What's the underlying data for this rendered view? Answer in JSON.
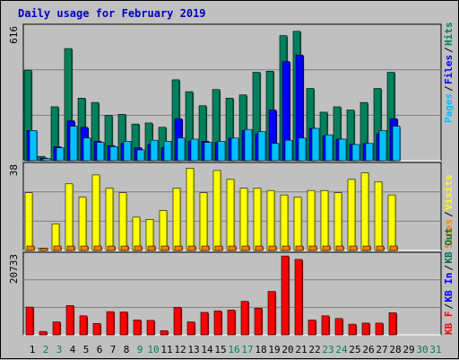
{
  "title": "Daily usage for February 2019",
  "colors": {
    "hits": "#00805c",
    "files": "#0000ff",
    "pages": "#00c0ff",
    "visits": "#ffff00",
    "sites": "#ff8000",
    "kbin": "#0000ff",
    "kbout": "#006f4e",
    "kbf": "#ff0000",
    "weekday": "#000000",
    "weekend": "#00805c"
  },
  "chart_data": [
    {
      "type": "bar",
      "panel": "hits-files-pages",
      "y_max_label": "616",
      "ylim": [
        0,
        616
      ],
      "legend": [
        {
          "name": "Pages",
          "color": "#00c0ff"
        },
        {
          "name": "Files",
          "color": "#0000ff"
        },
        {
          "name": "Hits",
          "color": "#00805c"
        }
      ],
      "categories": [
        "1",
        "2",
        "3",
        "4",
        "5",
        "6",
        "7",
        "8",
        "9",
        "10",
        "11",
        "12",
        "13",
        "14",
        "15",
        "16",
        "17",
        "18",
        "19",
        "20",
        "21",
        "22",
        "23",
        "24",
        "25",
        "26",
        "27",
        "28"
      ],
      "series": [
        {
          "name": "Hits",
          "values": [
            420,
            20,
            250,
            520,
            290,
            270,
            210,
            215,
            170,
            175,
            155,
            375,
            320,
            255,
            330,
            290,
            305,
            410,
            415,
            580,
            600,
            335,
            225,
            250,
            235,
            270,
            335,
            410
          ]
        },
        {
          "name": "Files",
          "values": [
            140,
            12,
            65,
            185,
            155,
            90,
            70,
            80,
            60,
            75,
            60,
            195,
            90,
            90,
            85,
            105,
            140,
            125,
            235,
            460,
            490,
            150,
            115,
            100,
            75,
            80,
            125,
            195
          ]
        },
        {
          "name": "Pages",
          "values": [
            140,
            10,
            60,
            160,
            105,
            85,
            65,
            90,
            50,
            95,
            90,
            105,
            100,
            85,
            90,
            105,
            145,
            135,
            80,
            95,
            105,
            150,
            120,
            100,
            75,
            80,
            140,
            160
          ]
        }
      ]
    },
    {
      "type": "bar",
      "panel": "visits-sites",
      "y_max_label": "38",
      "ylim": [
        0,
        38
      ],
      "legend": [
        {
          "name": "Sites",
          "color": "#ff8000"
        },
        {
          "name": "Visits",
          "color": "#ffff00"
        }
      ],
      "categories": [
        "1",
        "2",
        "3",
        "4",
        "5",
        "6",
        "7",
        "8",
        "9",
        "10",
        "11",
        "12",
        "13",
        "14",
        "15",
        "16",
        "17",
        "18",
        "19",
        "20",
        "21",
        "22",
        "23",
        "24",
        "25",
        "26",
        "27",
        "28"
      ],
      "series": [
        {
          "name": "Visits",
          "values": [
            26,
            1,
            12,
            30,
            24,
            34,
            28,
            26,
            15,
            14,
            18,
            28,
            37,
            26,
            36,
            32,
            28,
            28,
            27,
            25,
            24,
            27,
            27,
            26,
            32,
            35,
            31,
            25
          ]
        },
        {
          "name": "Sites",
          "values": [
            2,
            1,
            2,
            2,
            2,
            2,
            2,
            2,
            2,
            2,
            2,
            2,
            2,
            2,
            2,
            2,
            2,
            2,
            2,
            2,
            2,
            2,
            2,
            2,
            2,
            2,
            2,
            2
          ]
        }
      ]
    },
    {
      "type": "bar",
      "panel": "kbytes",
      "y_max_label": "20733",
      "ylim": [
        0,
        20733
      ],
      "legend": [
        {
          "name": "KB F",
          "color": "#ff0000"
        },
        {
          "name": "KB In",
          "color": "#0000ff"
        },
        {
          "name": "KB Out",
          "color": "#006f4e"
        }
      ],
      "categories": [
        "1",
        "2",
        "3",
        "4",
        "5",
        "6",
        "7",
        "8",
        "9",
        "10",
        "11",
        "12",
        "13",
        "14",
        "15",
        "16",
        "17",
        "18",
        "19",
        "20",
        "21",
        "22",
        "23",
        "24",
        "25",
        "26",
        "27",
        "28"
      ],
      "series": [
        {
          "name": "KB F",
          "values": [
            7300,
            900,
            3400,
            7700,
            5000,
            3000,
            6100,
            6000,
            3900,
            3800,
            1100,
            7200,
            3400,
            5900,
            6300,
            6500,
            8800,
            7000,
            11400,
            20700,
            19800,
            3900,
            5000,
            4300,
            2800,
            3100,
            3100,
            5800
          ]
        }
      ]
    }
  ],
  "x_axis": {
    "days": [
      "1",
      "2",
      "3",
      "4",
      "5",
      "6",
      "7",
      "8",
      "9",
      "10",
      "11",
      "12",
      "13",
      "14",
      "15",
      "16",
      "17",
      "18",
      "19",
      "20",
      "21",
      "22",
      "23",
      "24",
      "25",
      "26",
      "27",
      "28",
      "29",
      "30",
      "31"
    ],
    "weekend_days": [
      "2",
      "3",
      "9",
      "10",
      "16",
      "17",
      "23",
      "24",
      "30",
      "31"
    ],
    "future_days": [
      "29",
      "30",
      "31"
    ]
  }
}
